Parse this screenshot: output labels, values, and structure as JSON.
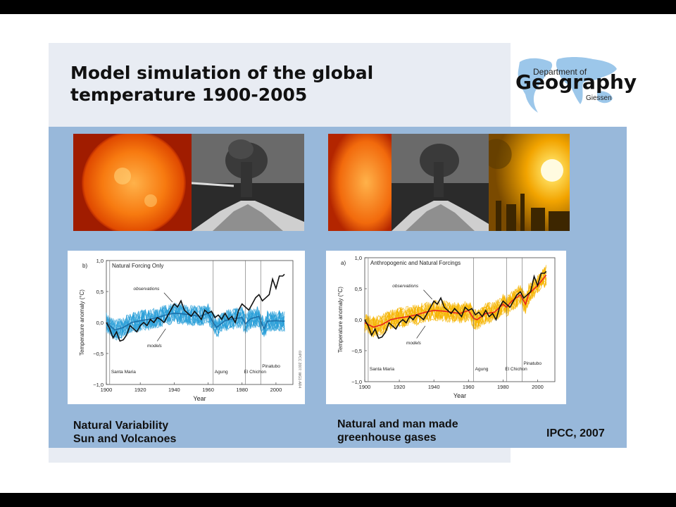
{
  "slide": {
    "title": "Model simulation of the global temperature 1900-2005",
    "logo": {
      "line1": "Department of",
      "line2": "Geography",
      "line3": "Giessen"
    },
    "captions": {
      "left_line1": "Natural Variability",
      "left_line2": "Sun and Volcanoes",
      "right_line1": "Natural and man made",
      "right_line2": "greenhouse gases",
      "source": "IPCC, 2007"
    },
    "photo_icons": [
      "sun-photo",
      "volcano-photo",
      "sun-photo",
      "volcano-photo",
      "sunset-pollution-photo"
    ]
  },
  "colors": {
    "panel_blue": "#98b8da",
    "model_left": "#2a9fd8",
    "model_right": "#f5b400",
    "model_mean_right": "#e8231c",
    "observations": "#111111"
  },
  "chart_data": [
    {
      "type": "line",
      "panel": "b)",
      "title": "Natural Forcing Only",
      "xlabel": "Year",
      "ylabel": "Temperature anomaly (°C)",
      "xlim": [
        1900,
        2010
      ],
      "ylim": [
        -1.0,
        1.0
      ],
      "xticks": [
        "1900",
        "1920",
        "1940",
        "1960",
        "1980",
        "2000"
      ],
      "yticks": [
        "−1,0",
        "−0,5",
        "0,0",
        "0,5",
        "1,0"
      ],
      "annotations": [
        "observations",
        "models"
      ],
      "events": [
        {
          "name": "Santa Maria",
          "year": 1902
        },
        {
          "name": "Agung",
          "year": 1963
        },
        {
          "name": "El Chichon",
          "year": 1982
        },
        {
          "name": "Pinatubo",
          "year": 1991
        }
      ],
      "credit": "©IPCC 2007: WG1-AR4",
      "series": [
        {
          "name": "observations",
          "x": [
            1900,
            1902,
            1904,
            1906,
            1908,
            1910,
            1912,
            1914,
            1916,
            1918,
            1920,
            1922,
            1924,
            1926,
            1928,
            1930,
            1932,
            1934,
            1936,
            1938,
            1940,
            1942,
            1944,
            1946,
            1948,
            1950,
            1952,
            1954,
            1956,
            1958,
            1960,
            1962,
            1964,
            1966,
            1968,
            1970,
            1972,
            1974,
            1976,
            1978,
            1980,
            1982,
            1984,
            1986,
            1988,
            1990,
            1992,
            1994,
            1996,
            1998,
            2000,
            2002,
            2004,
            2005
          ],
          "values": [
            0.0,
            -0.1,
            -0.25,
            -0.15,
            -0.3,
            -0.28,
            -0.2,
            -0.05,
            -0.1,
            -0.15,
            -0.05,
            0.0,
            -0.05,
            0.05,
            0.0,
            0.08,
            0.05,
            0.0,
            0.1,
            0.2,
            0.3,
            0.25,
            0.35,
            0.2,
            0.15,
            0.1,
            0.18,
            0.12,
            0.05,
            0.2,
            0.15,
            0.18,
            0.08,
            0.12,
            0.05,
            0.15,
            0.05,
            0.1,
            0.0,
            0.2,
            0.3,
            0.25,
            0.2,
            0.3,
            0.4,
            0.45,
            0.35,
            0.4,
            0.45,
            0.7,
            0.55,
            0.75,
            0.75,
            0.78
          ]
        },
        {
          "name": "models",
          "x": [
            1900,
            1905,
            1910,
            1915,
            1920,
            1925,
            1930,
            1935,
            1940,
            1945,
            1950,
            1955,
            1960,
            1963,
            1965,
            1970,
            1975,
            1980,
            1982,
            1985,
            1990,
            1991,
            1993,
            1995,
            2000,
            2005
          ],
          "values": [
            0.0,
            -0.12,
            -0.08,
            0.0,
            0.03,
            0.05,
            0.08,
            0.12,
            0.15,
            0.14,
            0.12,
            0.1,
            0.15,
            0.0,
            -0.08,
            0.03,
            0.06,
            0.08,
            -0.02,
            0.06,
            0.1,
            0.02,
            -0.1,
            0.02,
            0.03,
            0.02
          ]
        }
      ]
    },
    {
      "type": "line",
      "panel": "a)",
      "title": "Anthropogenic and Natural Forcings",
      "xlabel": "Year",
      "ylabel": "Temperature anomaly (°C)",
      "xlim": [
        1900,
        2010
      ],
      "ylim": [
        -1.0,
        1.0
      ],
      "xticks": [
        "1900",
        "1920",
        "1940",
        "1960",
        "1980",
        "2000"
      ],
      "yticks": [
        "−1,0",
        "−0,5",
        "0,0",
        "0,5",
        "1,0"
      ],
      "annotations": [
        "observations",
        "models"
      ],
      "events": [
        {
          "name": "Santa Maria",
          "year": 1902
        },
        {
          "name": "Agung",
          "year": 1963
        },
        {
          "name": "El Chichon",
          "year": 1982
        },
        {
          "name": "Pinatubo",
          "year": 1991
        }
      ],
      "series": [
        {
          "name": "observations",
          "x": [
            1900,
            1902,
            1904,
            1906,
            1908,
            1910,
            1912,
            1914,
            1916,
            1918,
            1920,
            1922,
            1924,
            1926,
            1928,
            1930,
            1932,
            1934,
            1936,
            1938,
            1940,
            1942,
            1944,
            1946,
            1948,
            1950,
            1952,
            1954,
            1956,
            1958,
            1960,
            1962,
            1964,
            1966,
            1968,
            1970,
            1972,
            1974,
            1976,
            1978,
            1980,
            1982,
            1984,
            1986,
            1988,
            1990,
            1992,
            1994,
            1996,
            1998,
            2000,
            2002,
            2004,
            2005
          ],
          "values": [
            0.0,
            -0.1,
            -0.25,
            -0.15,
            -0.3,
            -0.28,
            -0.2,
            -0.05,
            -0.1,
            -0.15,
            -0.05,
            0.0,
            -0.05,
            0.05,
            0.0,
            0.08,
            0.05,
            0.0,
            0.1,
            0.2,
            0.3,
            0.25,
            0.35,
            0.2,
            0.15,
            0.1,
            0.18,
            0.12,
            0.05,
            0.2,
            0.15,
            0.18,
            0.08,
            0.12,
            0.05,
            0.15,
            0.05,
            0.1,
            0.0,
            0.2,
            0.3,
            0.25,
            0.2,
            0.3,
            0.4,
            0.45,
            0.35,
            0.4,
            0.45,
            0.7,
            0.55,
            0.75,
            0.75,
            0.78
          ]
        },
        {
          "name": "models",
          "x": [
            1900,
            1905,
            1910,
            1915,
            1920,
            1925,
            1930,
            1935,
            1940,
            1945,
            1950,
            1955,
            1960,
            1963,
            1965,
            1970,
            1975,
            1980,
            1982,
            1985,
            1990,
            1991,
            1993,
            1995,
            2000,
            2005
          ],
          "values": [
            -0.05,
            -0.12,
            -0.08,
            0.0,
            0.03,
            0.05,
            0.08,
            0.12,
            0.15,
            0.14,
            0.12,
            0.1,
            0.15,
            0.02,
            0.0,
            0.1,
            0.12,
            0.25,
            0.2,
            0.3,
            0.4,
            0.35,
            0.25,
            0.42,
            0.55,
            0.72
          ]
        }
      ]
    }
  ]
}
